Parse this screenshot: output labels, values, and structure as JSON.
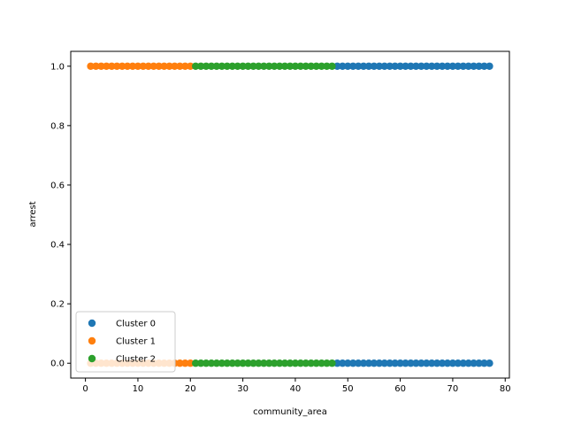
{
  "chart_data": {
    "type": "scatter",
    "title": "",
    "xlabel": "community_area",
    "ylabel": "arrest",
    "xlim": [
      -2.8,
      80.8
    ],
    "ylim": [
      -0.05,
      1.05
    ],
    "xticks": [
      0,
      10,
      20,
      30,
      40,
      50,
      60,
      70,
      80
    ],
    "yticks": [
      0.0,
      0.2,
      0.4,
      0.6,
      0.8,
      1.0
    ],
    "xtick_labels": [
      "0",
      "10",
      "20",
      "30",
      "40",
      "50",
      "60",
      "70",
      "80"
    ],
    "ytick_labels": [
      "0.0",
      "0.2",
      "0.4",
      "0.6",
      "0.8",
      "1.0"
    ],
    "grid": false,
    "legend_position": "lower-left",
    "series": [
      {
        "name": "Cluster 0",
        "color": "#1f77b4",
        "x_range": [
          48,
          77
        ],
        "y_values": [
          0,
          1
        ]
      },
      {
        "name": "Cluster 1",
        "color": "#ff7f0e",
        "x_range": [
          1,
          20
        ],
        "y_values": [
          0,
          1
        ]
      },
      {
        "name": "Cluster 2",
        "color": "#2ca02c",
        "x_range": [
          21,
          47
        ],
        "y_values": [
          0,
          1
        ]
      }
    ]
  }
}
